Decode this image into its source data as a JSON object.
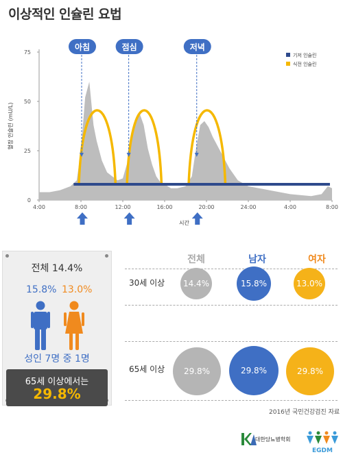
{
  "title": "이상적인 인슐린 요법",
  "chart_data": {
    "type": "area",
    "ylabel": "혈장 인슐린 (mU/L)",
    "xlabel": "시간",
    "ylim": [
      0,
      75
    ],
    "yticks": [
      0,
      25,
      50,
      75
    ],
    "xticks": [
      "4:00",
      "8:00",
      "12:00",
      "16:00",
      "20:00",
      "24:00",
      "4:00",
      "8:00"
    ],
    "legend_position": "top-right",
    "series": [
      {
        "name": "기저 인슐린",
        "color": "#2e4a8c",
        "kind": "line",
        "values_x": [
          7.3,
          31.8
        ],
        "values_y": [
          8,
          8
        ]
      },
      {
        "name": "식전 인슐린",
        "color": "#f5b800",
        "kind": "arc"
      }
    ],
    "physiological_profile": {
      "color": "#bdbdbd",
      "x": [
        4,
        5,
        6,
        7,
        7.6,
        8,
        8.4,
        8.8,
        9.2,
        9.5,
        10,
        10.5,
        11,
        11.5,
        12,
        12.6,
        13.2,
        13.6,
        14,
        14.4,
        14.8,
        15.2,
        15.6,
        16,
        16.6,
        17.2,
        18,
        18.6,
        19,
        19.4,
        19.8,
        20.2,
        20.6,
        21,
        21.6,
        22.2,
        23,
        24,
        26,
        28,
        30,
        31,
        31.6,
        32
      ],
      "y": [
        4,
        4,
        5,
        7,
        10,
        25,
        52,
        60,
        38,
        30,
        20,
        14,
        12,
        10,
        11,
        22,
        40,
        44,
        38,
        26,
        18,
        12,
        9,
        8,
        6,
        6,
        7,
        12,
        26,
        38,
        40,
        37,
        32,
        28,
        22,
        16,
        10,
        7,
        5,
        3,
        2,
        3,
        7,
        6
      ]
    },
    "bolus_curves": [
      {
        "start": 7.8,
        "peak": 9.5,
        "end": 11.3,
        "peak_value": 44
      },
      {
        "start": 12.4,
        "peak": 14,
        "end": 15.7,
        "peak_value": 44
      },
      {
        "start": 18.3,
        "peak": 20,
        "end": 21.8,
        "peak_value": 44
      }
    ],
    "annotations": [
      {
        "label": "아침",
        "x": 8
      },
      {
        "label": "점심",
        "x": 12.5
      },
      {
        "label": "저녁",
        "x": 19
      }
    ],
    "meal_arrows_x": [
      8,
      12.5,
      19
    ]
  },
  "legend": {
    "basal": "기저 인슐린",
    "prandial": "식전 인슐린"
  },
  "summary_card": {
    "total": "전체 14.4%",
    "male_pct": "15.8%",
    "female_pct": "13.0%",
    "ratio": "성인 7명 중 1명",
    "elder_label": "65세 이상에서는",
    "elder_pct": "29.8%"
  },
  "bubble_table": {
    "headers": [
      {
        "label": "전체",
        "color": "#a9a9a9"
      },
      {
        "label": "남자",
        "color": "#3f6fc4"
      },
      {
        "label": "여자",
        "color": "#f08a1e"
      }
    ],
    "rows": [
      {
        "label": "30세 이상",
        "values": [
          "14.4%",
          "15.8%",
          "13.0%"
        ],
        "numeric": [
          14.4,
          15.8,
          13.0
        ]
      },
      {
        "label": "65세 이상",
        "values": [
          "29.8%",
          "29.8%",
          "29.8%"
        ],
        "numeric": [
          29.8,
          29.8,
          29.8
        ]
      }
    ],
    "colors": {
      "total": "#b5b5b5",
      "male": "#3f6fc4",
      "female": "#f5b219"
    }
  },
  "source": "2016년 국민건강검진 자료",
  "logos": {
    "kda": "대한당뇨병학회",
    "egdm": "EGDM"
  }
}
